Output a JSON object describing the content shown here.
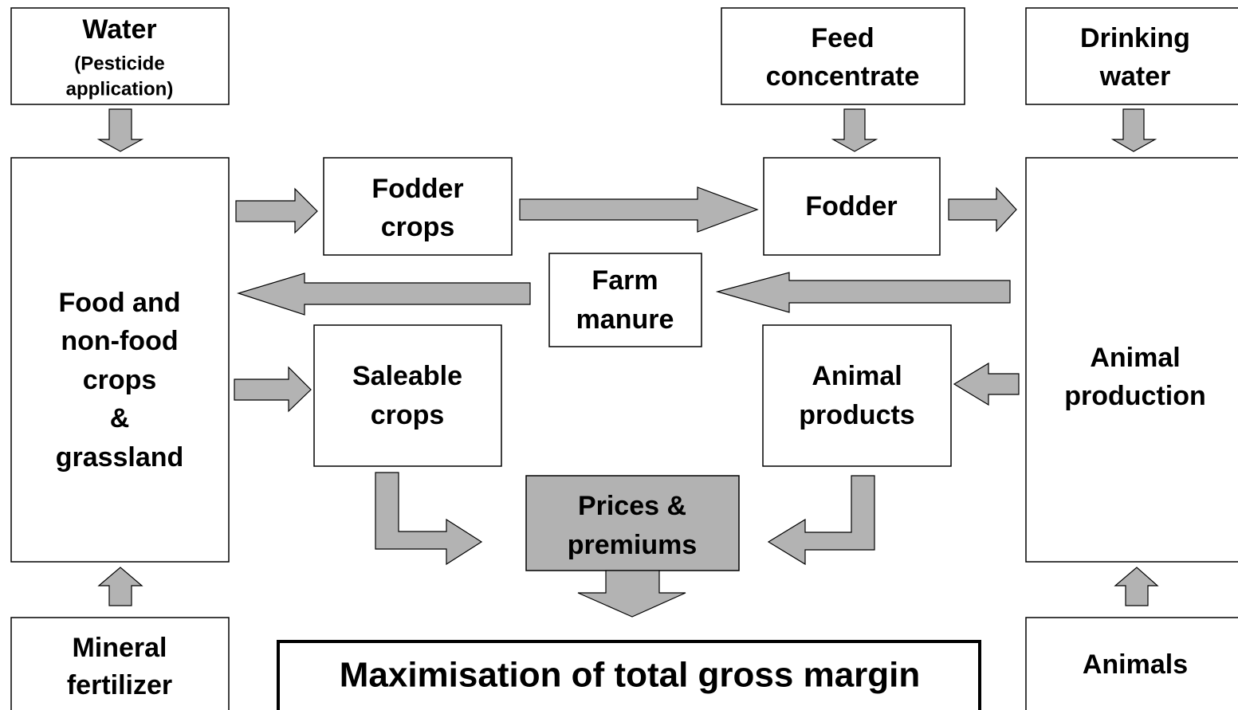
{
  "nodes": {
    "water": {
      "lines": [
        "Water",
        "(Pesticide",
        "application)"
      ]
    },
    "feed_concentrate": {
      "lines": [
        "Feed",
        "concentrate"
      ]
    },
    "drinking_water": {
      "lines": [
        "Drinking",
        "water"
      ]
    },
    "crops": {
      "lines": [
        "Food and",
        "non-food",
        "crops",
        "&",
        "grassland"
      ]
    },
    "fodder_crops": {
      "lines": [
        "Fodder",
        "crops"
      ]
    },
    "fodder": {
      "lines": [
        "Fodder"
      ]
    },
    "animal_production": {
      "lines": [
        "Animal",
        "production"
      ]
    },
    "farm_manure": {
      "lines": [
        "Farm",
        "manure"
      ]
    },
    "saleable_crops": {
      "lines": [
        "Saleable",
        "crops"
      ]
    },
    "animal_products": {
      "lines": [
        "Animal",
        "products"
      ]
    },
    "prices": {
      "lines": [
        "Prices &",
        "premiums"
      ]
    },
    "mineral_fertilizer": {
      "lines": [
        "Mineral",
        "fertilizer"
      ]
    },
    "maximisation": {
      "lines": [
        "Maximisation of total gross margin"
      ]
    },
    "animals": {
      "lines": [
        "Animals"
      ]
    }
  }
}
